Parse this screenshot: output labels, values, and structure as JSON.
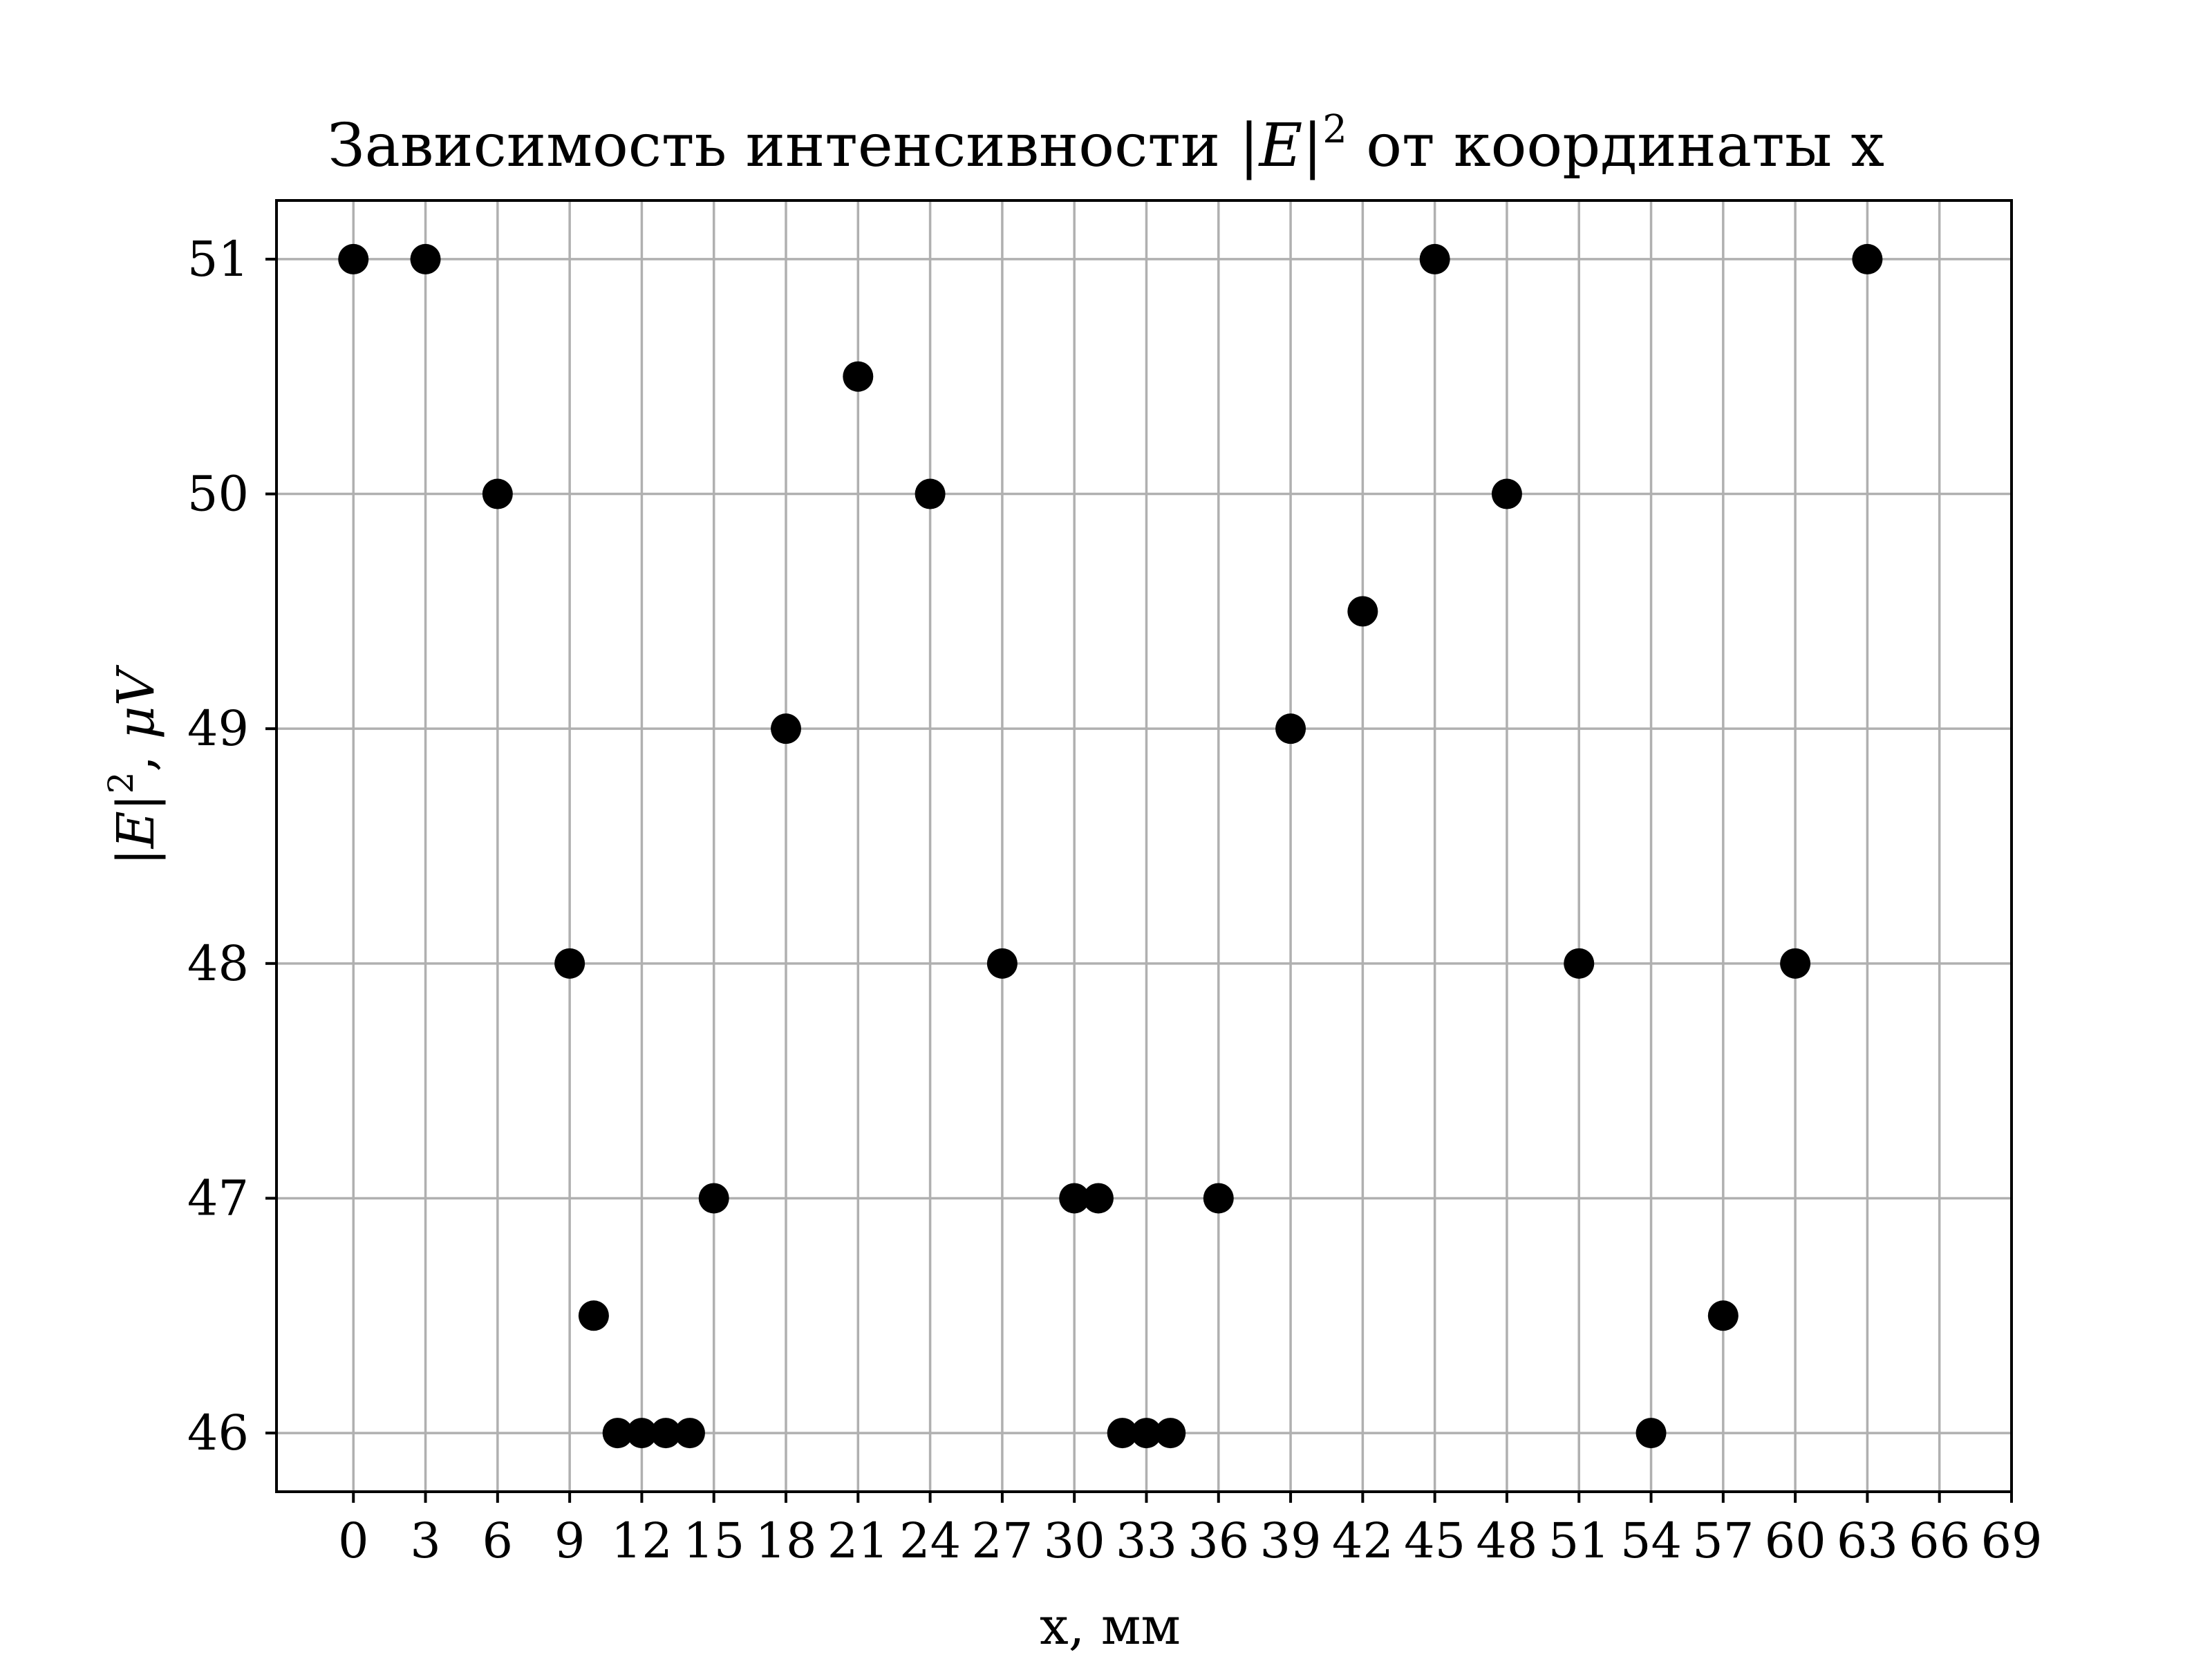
{
  "chart_data": {
    "type": "scatter",
    "title_parts": {
      "prefix": "Зависимость интенсивности ",
      "var": "|E|",
      "sup": "2",
      "suffix": " от координаты x"
    },
    "xlabel": "x, мм",
    "ylabel_parts": {
      "var": "|E|",
      "sup": "2",
      "suffix": ", ",
      "unit": "μV"
    },
    "xlim": [
      -3.2,
      69
    ],
    "ylim": [
      45.75,
      51.25
    ],
    "xticks": [
      0,
      3,
      6,
      9,
      12,
      15,
      18,
      21,
      24,
      27,
      30,
      33,
      36,
      39,
      42,
      45,
      48,
      51,
      54,
      57,
      60,
      63,
      66,
      69
    ],
    "yticks": [
      46,
      47,
      48,
      49,
      50,
      51
    ],
    "grid": true,
    "marker_color": "#000000",
    "points": [
      [
        0,
        51
      ],
      [
        3,
        51
      ],
      [
        6,
        50
      ],
      [
        9,
        48
      ],
      [
        10,
        46.5
      ],
      [
        11,
        46
      ],
      [
        12,
        46
      ],
      [
        13,
        46
      ],
      [
        14,
        46
      ],
      [
        15,
        47
      ],
      [
        18,
        49
      ],
      [
        21,
        50.5
      ],
      [
        24,
        50
      ],
      [
        27,
        48
      ],
      [
        30,
        47
      ],
      [
        31,
        47
      ],
      [
        32,
        46
      ],
      [
        33,
        46
      ],
      [
        34,
        46
      ],
      [
        36,
        47
      ],
      [
        39,
        49
      ],
      [
        42,
        49.5
      ],
      [
        45,
        51
      ],
      [
        48,
        50
      ],
      [
        51,
        48
      ],
      [
        54,
        46
      ],
      [
        57,
        46.5
      ],
      [
        60,
        48
      ],
      [
        63,
        51
      ]
    ]
  }
}
